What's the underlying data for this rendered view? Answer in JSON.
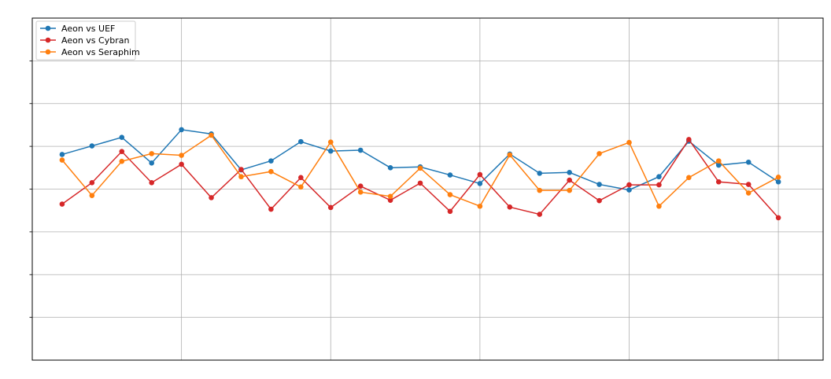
{
  "chart_data": {
    "type": "line",
    "title": "",
    "xlabel": "",
    "ylabel": "",
    "x": [
      1,
      2,
      3,
      4,
      5,
      6,
      7,
      8,
      9,
      10,
      11,
      12,
      13,
      14,
      15,
      16,
      17,
      18,
      19,
      20,
      21,
      22,
      23,
      24,
      25
    ],
    "xlim": [
      0,
      26.5
    ],
    "ylim": [
      0,
      8
    ],
    "grid": true,
    "legend_position": "upper-left",
    "series": [
      {
        "name": "Aeon vs UEF",
        "color": "#1f77b4",
        "values": [
          4.81,
          5.01,
          5.21,
          4.61,
          5.39,
          5.29,
          4.45,
          4.66,
          5.11,
          4.89,
          4.91,
          4.5,
          4.52,
          4.33,
          4.13,
          4.82,
          4.37,
          4.39,
          4.11,
          3.98,
          4.29,
          5.12,
          4.56,
          4.63,
          4.17
        ]
      },
      {
        "name": "Aeon vs Cybran",
        "color": "#d62728",
        "values": [
          3.65,
          4.15,
          4.88,
          4.15,
          4.58,
          3.8,
          4.46,
          3.53,
          4.27,
          3.57,
          4.07,
          3.74,
          4.14,
          3.48,
          4.34,
          3.58,
          3.41,
          4.21,
          3.73,
          4.1,
          4.1,
          5.16,
          4.17,
          4.11,
          3.33
        ]
      },
      {
        "name": "Aeon vs Seraphim",
        "color": "#ff7f0e",
        "values": [
          4.68,
          3.85,
          4.65,
          4.83,
          4.79,
          5.26,
          4.29,
          4.41,
          4.05,
          5.1,
          3.93,
          3.83,
          4.49,
          3.87,
          3.6,
          4.8,
          3.97,
          3.97,
          4.83,
          5.09,
          3.6,
          4.27,
          4.66,
          3.91,
          4.28
        ]
      }
    ]
  }
}
